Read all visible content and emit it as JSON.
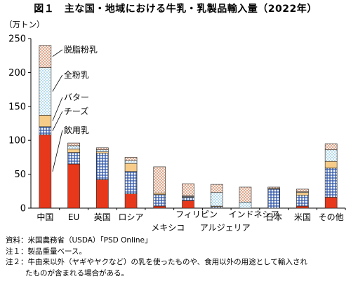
{
  "title": "図１　主な国・地域における牛乳・乳製品輸入量（2022年）",
  "notes": {
    "source": "資料：米国農務省（USDA）「PSD Online」",
    "note1": "注１：製品重量ベース。",
    "note2a": "注２：牛由来以外（ヤギやヤクなど）の乳を使ったものや、食用以外の用途として輸入され",
    "note2b": "たものが含まれる場合がある。"
  },
  "chart_data": {
    "type": "bar",
    "stacked": true,
    "ylabel": "（万トン）",
    "ylim": [
      0,
      250
    ],
    "yticks": [
      0,
      50,
      100,
      150,
      200,
      250
    ],
    "grid": false,
    "categories": [
      "中国",
      "EU",
      "英国",
      "ロシア",
      "メキシコ",
      "フィリピン",
      "アルジェリア",
      "インドネシア",
      "日本",
      "米国",
      "その他"
    ],
    "series": [
      {
        "name": "飲用乳",
        "color": "#e8381b",
        "values": [
          108,
          65,
          42,
          21,
          3,
          11,
          0,
          0,
          0,
          3,
          16
        ]
      },
      {
        "name": "チーズ",
        "color": "#2e55a6",
        "values": [
          12,
          17,
          39,
          33,
          17,
          5,
          2,
          0,
          28,
          16,
          43
        ]
      },
      {
        "name": "バター",
        "color": "#f6cc88",
        "values": [
          17,
          5,
          2,
          12,
          2,
          1,
          1,
          0,
          1,
          4,
          10
        ]
      },
      {
        "name": "全粉乳",
        "color": "#7fc9e6",
        "values": [
          70,
          5,
          3,
          4,
          0,
          1,
          20,
          9,
          0,
          1,
          17
        ]
      },
      {
        "name": "脱脂粉乳",
        "color": "#d99a7a",
        "values": [
          33,
          4,
          3,
          5,
          39,
          18,
          12,
          22,
          2,
          4,
          9
        ]
      }
    ],
    "legend": "inline-callouts-left"
  }
}
